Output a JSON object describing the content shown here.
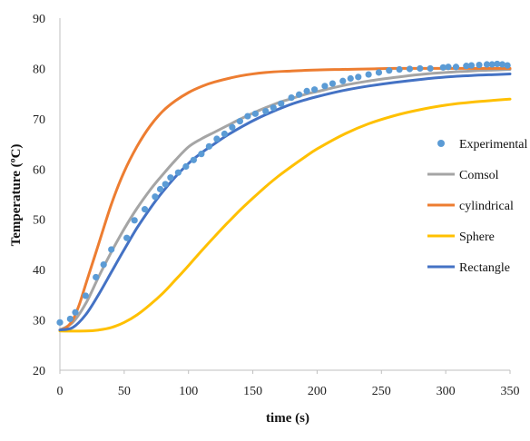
{
  "chart_data": {
    "type": "line",
    "xlabel": "time (s)",
    "ylabel": "Temperature (ºC)",
    "xlim": [
      0,
      350
    ],
    "ylim": [
      20,
      90
    ],
    "xticks": [
      0,
      50,
      100,
      150,
      200,
      250,
      300,
      350
    ],
    "yticks": [
      20,
      30,
      40,
      50,
      60,
      70,
      80,
      90
    ],
    "grid": false,
    "legend_position": "right",
    "series": [
      {
        "name": "Experimental",
        "kind": "scatter",
        "color": "#5B9BD5",
        "x": [
          0,
          8,
          12,
          20,
          28,
          34,
          40,
          52,
          58,
          66,
          74,
          78,
          82,
          86,
          92,
          98,
          104,
          110,
          116,
          122,
          128,
          134,
          140,
          146,
          152,
          160,
          166,
          172,
          180,
          186,
          192,
          198,
          206,
          212,
          220,
          226,
          232,
          240,
          248,
          256,
          264,
          272,
          280,
          288,
          298,
          302,
          308,
          316,
          320,
          326,
          332,
          336,
          340,
          344,
          348
        ],
        "y": [
          29.5,
          30.2,
          31.5,
          34.8,
          38.5,
          41,
          44,
          46.3,
          49.8,
          52,
          54.5,
          56,
          57,
          58.3,
          59.3,
          60.5,
          61.8,
          63,
          64.5,
          66,
          67,
          68.3,
          69.5,
          70.5,
          71,
          71.5,
          72.2,
          73,
          74.2,
          74.8,
          75.5,
          75.8,
          76.5,
          77,
          77.5,
          78,
          78.3,
          78.8,
          79.2,
          79.6,
          79.8,
          79.9,
          80,
          80,
          80.2,
          80.3,
          80.3,
          80.5,
          80.6,
          80.7,
          80.8,
          80.8,
          80.9,
          80.8,
          80.6
        ]
      },
      {
        "name": "Comsol",
        "kind": "line",
        "color": "#A5A5A5",
        "x": [
          0,
          10,
          20,
          30,
          40,
          50,
          60,
          70,
          80,
          90,
          100,
          110,
          120,
          130,
          140,
          150,
          160,
          170,
          180,
          190,
          200,
          220,
          240,
          260,
          280,
          300,
          320,
          340,
          350
        ],
        "y": [
          28,
          29.5,
          33.2,
          38.5,
          43.5,
          48.1,
          52.2,
          55.8,
          58.9,
          61.8,
          64.4,
          66,
          67.3,
          68.6,
          69.9,
          71.1,
          72.2,
          73.2,
          74,
          74.8,
          75.4,
          76.6,
          77.5,
          78.2,
          78.8,
          79.2,
          79.5,
          79.7,
          79.8
        ]
      },
      {
        "name": "cylindrical",
        "kind": "line",
        "color": "#ED7D31",
        "x": [
          0,
          5,
          10,
          15,
          20,
          25,
          30,
          40,
          50,
          60,
          70,
          80,
          90,
          100,
          110,
          120,
          140,
          160,
          180,
          200,
          220,
          240,
          260,
          280,
          300,
          320,
          350
        ],
        "y": [
          28,
          28.5,
          30,
          33,
          37,
          41,
          45,
          53,
          59.5,
          64.5,
          68.5,
          71.5,
          73.6,
          75.2,
          76.4,
          77.3,
          78.5,
          79.2,
          79.5,
          79.7,
          79.8,
          79.9,
          80,
          80,
          80,
          80,
          80
        ]
      },
      {
        "name": "Sphere",
        "kind": "line",
        "color": "#FFC000",
        "x": [
          0,
          20,
          30,
          40,
          50,
          60,
          70,
          80,
          90,
          100,
          110,
          120,
          130,
          140,
          150,
          160,
          170,
          180,
          190,
          200,
          220,
          240,
          260,
          280,
          300,
          320,
          340,
          350
        ],
        "y": [
          27.8,
          27.8,
          28,
          28.5,
          29.5,
          31,
          33,
          35.3,
          38,
          40.8,
          43.7,
          46.5,
          49.2,
          51.8,
          54.2,
          56.5,
          58.6,
          60.5,
          62.3,
          64,
          66.8,
          69,
          70.6,
          71.8,
          72.7,
          73.3,
          73.7,
          73.9
        ]
      },
      {
        "name": "Rectangle",
        "kind": "line",
        "color": "#4472C4",
        "x": [
          0,
          10,
          20,
          30,
          40,
          50,
          60,
          70,
          80,
          90,
          100,
          110,
          120,
          130,
          140,
          150,
          160,
          170,
          180,
          190,
          200,
          220,
          240,
          260,
          280,
          300,
          320,
          340,
          350
        ],
        "y": [
          28,
          28.5,
          31,
          35,
          39.5,
          44,
          48.3,
          52.1,
          55.5,
          58.5,
          61.1,
          63.2,
          65,
          66.7,
          68.2,
          69.6,
          70.8,
          71.9,
          72.9,
          73.7,
          74.4,
          75.6,
          76.5,
          77.2,
          77.8,
          78.3,
          78.6,
          78.8,
          78.9
        ]
      }
    ]
  }
}
